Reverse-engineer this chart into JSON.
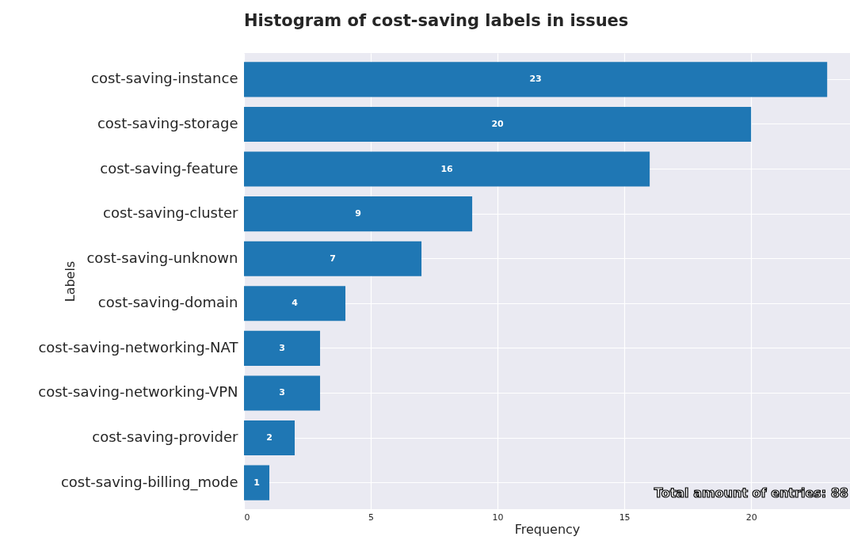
{
  "chart_data": {
    "type": "bar",
    "orientation": "horizontal",
    "title": "Histogram of cost-saving labels in issues",
    "xlabel": "Frequency",
    "ylabel": "Labels",
    "categories": [
      "cost-saving-instance",
      "cost-saving-storage",
      "cost-saving-feature",
      "cost-saving-cluster",
      "cost-saving-unknown",
      "cost-saving-domain",
      "cost-saving-networking-NAT",
      "cost-saving-networking-VPN",
      "cost-saving-provider",
      "cost-saving-billing_mode"
    ],
    "values": [
      23,
      20,
      16,
      9,
      7,
      4,
      3,
      3,
      2,
      1
    ],
    "color": "#1f77b4",
    "data_labels": true,
    "xlim": [
      0,
      23.9
    ],
    "xticks": [
      0,
      5,
      10,
      15,
      20
    ],
    "grid": true,
    "annotations": [
      "Total amount of entries: 88"
    ]
  }
}
